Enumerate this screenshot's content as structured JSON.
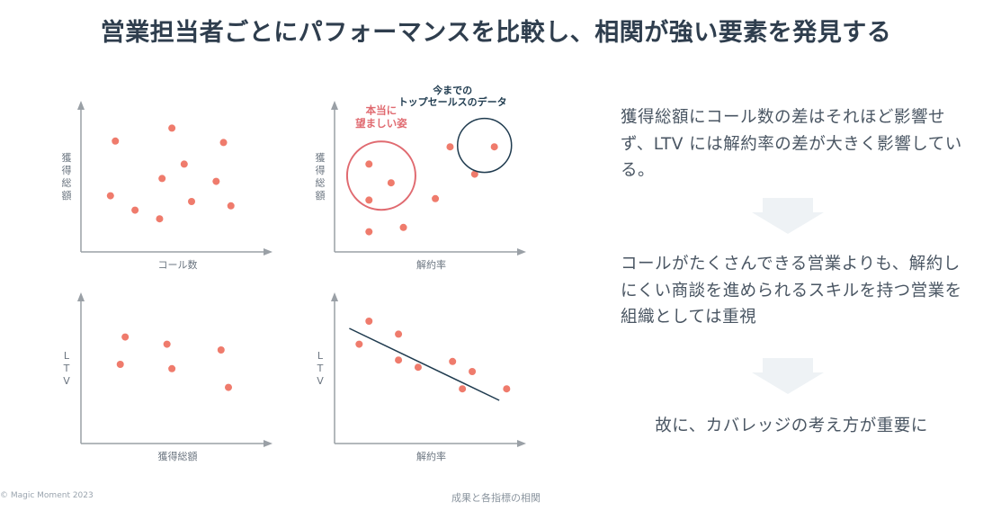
{
  "title": "営業担当者ごとにパフォーマンスを比較し、相関が強い要素を発見する",
  "chart_data": [
    {
      "type": "scatter",
      "xlabel": "コール数",
      "ylabel": "獲得総額",
      "points": [
        [
          1.4,
          7.7
        ],
        [
          3.7,
          8.6
        ],
        [
          5.8,
          7.6
        ],
        [
          3.3,
          5.1
        ],
        [
          4.2,
          6.1
        ],
        [
          5.5,
          4.9
        ],
        [
          1.2,
          3.9
        ],
        [
          2.2,
          2.9
        ],
        [
          3.2,
          2.3
        ],
        [
          4.5,
          3.5
        ],
        [
          6.1,
          3.2
        ]
      ]
    },
    {
      "type": "scatter",
      "xlabel": "解約率",
      "ylabel": "獲得総額",
      "points": [
        [
          1.4,
          6.1
        ],
        [
          2.3,
          4.8
        ],
        [
          1.4,
          3.6
        ],
        [
          4.1,
          3.7
        ],
        [
          1.4,
          1.4
        ],
        [
          2.8,
          1.7
        ],
        [
          4.7,
          7.3
        ],
        [
          6.5,
          7.3
        ],
        [
          5.7,
          5.4
        ]
      ],
      "annotations": {
        "ideal": "本当に望ましい姿",
        "top_sales_line1": "今までの",
        "top_sales_line2": "トップセールスのデータ"
      }
    },
    {
      "type": "scatter",
      "xlabel": "獲得総額",
      "ylabel": "L T V",
      "points": [
        [
          1.8,
          7.4
        ],
        [
          3.5,
          6.9
        ],
        [
          5.7,
          6.5
        ],
        [
          1.6,
          5.5
        ],
        [
          3.7,
          5.2
        ],
        [
          6.0,
          3.9
        ]
      ]
    },
    {
      "type": "scatter",
      "xlabel": "解約率",
      "ylabel": "L T V",
      "trendline": true,
      "points": [
        [
          1.4,
          8.5
        ],
        [
          2.6,
          7.6
        ],
        [
          1.0,
          6.9
        ],
        [
          2.6,
          5.8
        ],
        [
          3.4,
          5.3
        ],
        [
          4.8,
          5.7
        ],
        [
          5.6,
          5.0
        ],
        [
          5.2,
          3.8
        ],
        [
          7.0,
          3.8
        ]
      ]
    }
  ],
  "right_panel": {
    "text1": "獲得総額にコール数の差はそれほど影響せず、LTV には解約率の差が大きく影響している。",
    "text2": "コールがたくさんできる営業よりも、解約しにくい商談を進められるスキルを持つ営業を組織としては重視",
    "text3": "故に、カバレッジの考え方が重要に"
  },
  "footer": {
    "copyright": "© Magic Moment 2023",
    "caption": "成果と各指標の相関"
  },
  "colors": {
    "dot": "#ef7b6c",
    "axis": "#9aa0a6",
    "ideal_circle": "#e06a70",
    "top_sales_circle": "#1f3b4f",
    "text": "#2f3e4e",
    "arrow": "#eef2f5"
  }
}
